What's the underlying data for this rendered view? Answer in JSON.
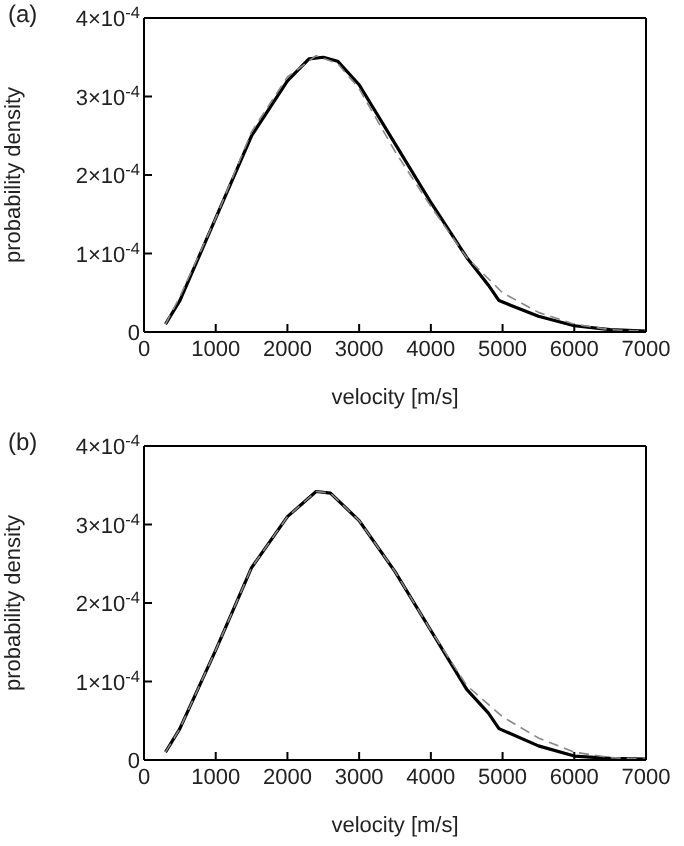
{
  "chart_data": [
    {
      "type": "line",
      "title": "(a)",
      "xlabel": "velocity [m/s]",
      "ylabel": "probability density",
      "xlim": [
        0,
        7000
      ],
      "xticks": [
        0,
        1000,
        2000,
        3000,
        4000,
        5000,
        6000,
        7000
      ],
      "ylim": [
        0,
        0.0004
      ],
      "yticks": [
        0,
        {
          "value": 0.0001,
          "label": "1×10$^{-4}$"
        },
        {
          "value": 0.0002,
          "label": "2×10$^{-4}$"
        },
        {
          "value": 0.0003,
          "label": "3×10$^{-4}$"
        },
        {
          "value": 0.0004,
          "label": "4×10$^{-4}$"
        }
      ],
      "marker": "none",
      "series": [
        {
          "color": "#000000",
          "line_style": "solid",
          "x": [
            300,
            500,
            1000,
            1500,
            2000,
            2300,
            2500,
            2700,
            3000,
            3500,
            4000,
            4500,
            4800,
            4950,
            5500,
            6000,
            6500,
            7000
          ],
          "values": [
            1e-05,
            4e-05,
            0.000145,
            0.00025,
            0.00032,
            0.000348,
            0.00035,
            0.000345,
            0.000315,
            0.00024,
            0.000165,
            9.5e-05,
            6e-05,
            4e-05,
            2e-05,
            8e-06,
            3e-06,
            1e-06
          ]
        },
        {
          "color": "#888888",
          "line_style": "dashed",
          "x": [
            300,
            500,
            1000,
            1500,
            2000,
            2400,
            2700,
            3000,
            3500,
            4000,
            4500,
            5000,
            5500,
            6000,
            6500,
            7000
          ],
          "values": [
            1e-05,
            4.5e-05,
            0.000145,
            0.000255,
            0.000325,
            0.000352,
            0.000342,
            0.00031,
            0.00023,
            0.00016,
            9.5e-05,
            5e-05,
            2.5e-05,
            1e-05,
            3e-06,
            1e-06
          ]
        }
      ]
    },
    {
      "type": "line",
      "title": "(b)",
      "xlabel": "velocity [m/s]",
      "ylabel": "probability density",
      "xlim": [
        0,
        7000
      ],
      "xticks": [
        0,
        1000,
        2000,
        3000,
        4000,
        5000,
        6000,
        7000
      ],
      "ylim": [
        0,
        0.0004
      ],
      "yticks": [
        0,
        {
          "value": 0.0001,
          "label": "1×10$^{-4}$"
        },
        {
          "value": 0.0002,
          "label": "2×10$^{-4}$"
        },
        {
          "value": 0.0003,
          "label": "3×10$^{-4}$"
        },
        {
          "value": 0.0004,
          "label": "4×10$^{-4}$"
        }
      ],
      "marker": "none",
      "series": [
        {
          "color": "#000000",
          "line_style": "solid",
          "x": [
            300,
            500,
            1000,
            1500,
            2000,
            2400,
            2600,
            3000,
            3500,
            4000,
            4500,
            4800,
            4950,
            5500,
            6000,
            6500,
            7000
          ],
          "values": [
            1e-05,
            4e-05,
            0.00014,
            0.000245,
            0.00031,
            0.000342,
            0.00034,
            0.000305,
            0.00024,
            0.000165,
            9e-05,
            6e-05,
            4e-05,
            1.8e-05,
            5e-06,
            2e-06,
            1e-06
          ]
        },
        {
          "color": "#888888",
          "line_style": "dashed",
          "x": [
            300,
            500,
            1000,
            1500,
            2000,
            2400,
            2600,
            3000,
            3500,
            4000,
            4500,
            5000,
            5500,
            6000,
            6500,
            7000
          ],
          "values": [
            1e-05,
            4e-05,
            0.00014,
            0.000245,
            0.00031,
            0.000342,
            0.00034,
            0.000305,
            0.00024,
            0.000165,
            9.5e-05,
            5.5e-05,
            2.8e-05,
            1e-05,
            3e-06,
            1e-06
          ]
        }
      ]
    }
  ]
}
